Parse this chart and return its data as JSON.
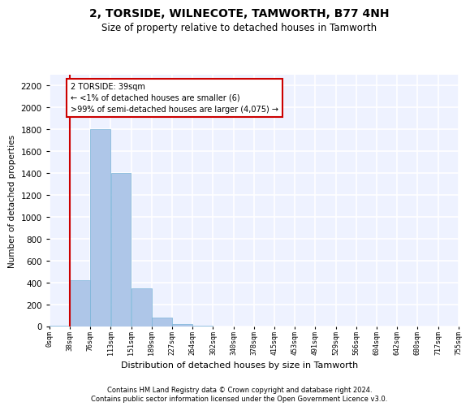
{
  "title": "2, TORSIDE, WILNECOTE, TAMWORTH, B77 4NH",
  "subtitle": "Size of property relative to detached houses in Tamworth",
  "xlabel": "Distribution of detached houses by size in Tamworth",
  "ylabel": "Number of detached properties",
  "bar_color": "#aec6e8",
  "bar_edge_color": "#7ab4d8",
  "annotation_box_color": "#cc0000",
  "annotation_text": "2 TORSIDE: 39sqm\n← <1% of detached houses are smaller (6)\n>99% of semi-detached houses are larger (4,075) →",
  "property_line_color": "#cc0000",
  "bins": [
    0,
    38,
    76,
    113,
    151,
    189,
    227,
    264,
    302,
    340,
    378,
    415,
    453,
    491,
    529,
    566,
    604,
    642,
    680,
    717,
    755
  ],
  "bin_labels": [
    "0sqm",
    "38sqm",
    "76sqm",
    "113sqm",
    "151sqm",
    "189sqm",
    "227sqm",
    "264sqm",
    "302sqm",
    "340sqm",
    "378sqm",
    "415sqm",
    "453sqm",
    "491sqm",
    "529sqm",
    "566sqm",
    "604sqm",
    "642sqm",
    "680sqm",
    "717sqm",
    "755sqm"
  ],
  "counts": [
    6,
    420,
    1800,
    1400,
    350,
    80,
    25,
    5,
    0,
    0,
    0,
    0,
    0,
    0,
    0,
    0,
    0,
    0,
    0,
    0
  ],
  "ylim": [
    0,
    2300
  ],
  "yticks": [
    0,
    200,
    400,
    600,
    800,
    1000,
    1200,
    1400,
    1600,
    1800,
    2000,
    2200
  ],
  "background_color": "#eef2ff",
  "grid_color": "#ffffff",
  "footer_line1": "Contains HM Land Registry data © Crown copyright and database right 2024.",
  "footer_line2": "Contains public sector information licensed under the Open Government Licence v3.0."
}
